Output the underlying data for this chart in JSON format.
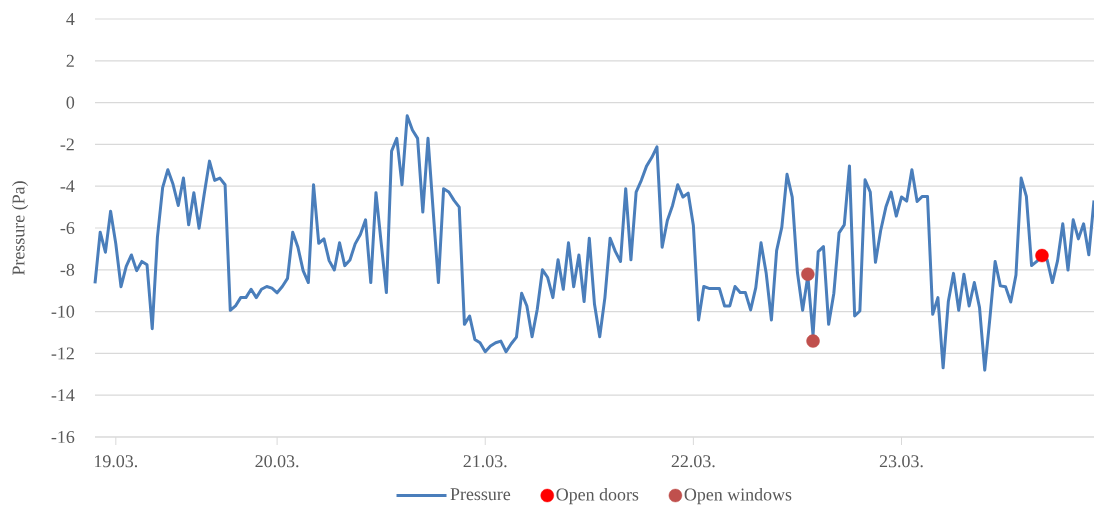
{
  "chart_data": {
    "type": "line",
    "ylabel": "Pressure (Pa)",
    "categories": [
      null,
      null,
      null,
      null,
      "19.03.",
      null,
      null,
      null,
      null,
      null,
      null,
      null,
      null,
      null,
      null,
      null,
      null,
      null,
      null,
      null,
      null,
      null,
      null,
      null,
      null,
      null,
      null,
      null,
      null,
      null,
      null,
      null,
      null,
      null,
      null,
      "20.03.",
      null,
      null,
      null,
      null,
      null,
      null,
      null,
      null,
      null,
      null,
      null,
      null,
      null,
      null,
      null,
      null,
      null,
      null,
      null,
      null,
      null,
      null,
      null,
      null,
      null,
      null,
      null,
      null,
      null,
      null,
      null,
      null,
      null,
      null,
      null,
      null,
      null,
      null,
      null,
      "21.03.",
      null,
      null,
      null,
      null,
      null,
      null,
      null,
      null,
      null,
      null,
      null,
      null,
      null,
      null,
      null,
      null,
      null,
      null,
      null,
      null,
      null,
      null,
      null,
      null,
      null,
      null,
      null,
      null,
      null,
      null,
      null,
      null,
      null,
      null,
      null,
      null,
      null,
      null,
      null,
      "22.03.",
      null,
      null,
      null,
      null,
      null,
      null,
      null,
      null,
      null,
      null,
      null,
      null,
      null,
      null,
      null,
      null,
      null,
      null,
      null,
      null,
      null,
      null,
      null,
      null,
      null,
      null,
      null,
      null,
      null,
      null,
      null,
      null,
      null,
      null,
      null,
      null,
      null,
      null,
      null,
      "23.03.",
      null,
      null,
      null,
      null,
      null,
      null,
      null,
      null,
      null,
      null,
      null,
      null,
      null,
      null,
      null,
      null,
      null,
      null,
      null,
      null,
      null,
      null,
      null,
      null,
      null,
      null,
      null,
      null,
      null,
      null,
      null,
      null,
      null,
      null,
      null,
      null,
      null
    ],
    "series": [
      {
        "name": "Pressure",
        "marker": "none",
        "color": "#4a7ebb",
        "values": [
          -8.65,
          -6.2,
          -7.16,
          -5.2,
          -6.76,
          -8.81,
          -7.84,
          -7.29,
          -8.04,
          -7.6,
          -7.76,
          -10.82,
          -6.44,
          -4.07,
          -3.21,
          -3.91,
          -4.92,
          -3.61,
          -5.85,
          -4.31,
          -6.01,
          -4.36,
          -2.8,
          -3.72,
          -3.61,
          -3.93,
          -9.94,
          -9.73,
          -9.33,
          -9.33,
          -8.93,
          -9.33,
          -8.93,
          -8.8,
          -8.88,
          -9.1,
          -8.8,
          -8.41,
          -6.2,
          -6.92,
          -8.04,
          -8.61,
          -3.93,
          -6.73,
          -6.52,
          -7.56,
          -8.01,
          -6.71,
          -7.8,
          -7.53,
          -6.76,
          -6.31,
          -5.61,
          -8.61,
          -4.31,
          -6.71,
          -9.09,
          -2.32,
          -1.71,
          -3.93,
          -0.63,
          -1.31,
          -1.71,
          -5.24,
          -1.71,
          -5.2,
          -8.61,
          -4.12,
          -4.28,
          -4.68,
          -5.0,
          -10.61,
          -10.21,
          -11.33,
          -11.49,
          -11.92,
          -11.65,
          -11.49,
          -11.41,
          -11.92,
          -11.54,
          -11.22,
          -9.12,
          -9.73,
          -11.2,
          -9.89,
          -8.0,
          -8.37,
          -9.33,
          -7.52,
          -8.93,
          -6.71,
          -8.81,
          -7.29,
          -9.52,
          -6.49,
          -9.65,
          -11.2,
          -9.33,
          -6.49,
          -7.12,
          -7.6,
          -4.12,
          -7.52,
          -4.28,
          -3.72,
          -3.04,
          -2.63,
          -2.12,
          -6.92,
          -5.64,
          -4.92,
          -3.93,
          -4.52,
          -4.33,
          -5.88,
          -10.4,
          -8.8,
          -8.89,
          -8.89,
          -8.89,
          -9.73,
          -9.73,
          -8.8,
          -9.09,
          -9.09,
          -9.92,
          -8.85,
          -6.71,
          -8.17,
          -10.4,
          -7.08,
          -5.96,
          -3.43,
          -4.52,
          -8.13,
          -9.94,
          -8.29,
          -11.14,
          -7.13,
          -6.89,
          -10.61,
          -9.12,
          -6.23,
          -5.85,
          -3.03,
          -10.21,
          -9.97,
          -3.69,
          -4.28,
          -7.64,
          -6.12,
          -5.0,
          -4.28,
          -5.43,
          -4.52,
          -4.71,
          -3.21,
          -4.73,
          -4.49,
          -4.49,
          -10.13,
          -9.33,
          -12.69,
          -9.52,
          -8.17,
          -9.94,
          -8.21,
          -9.73,
          -8.61,
          -9.81,
          -12.8,
          -10.29,
          -7.6,
          -8.77,
          -8.81,
          -9.54,
          -8.25,
          -3.61,
          -4.49,
          -7.8,
          -7.6,
          -7.32,
          -7.53,
          -8.61,
          -7.56,
          -5.8,
          -8.01,
          -5.61,
          -6.52,
          -5.8,
          -7.28,
          -4.68
        ]
      },
      {
        "name": "Open doors",
        "type": "scatter",
        "marker": "circle",
        "color": "#ff0000",
        "values": [
          null,
          null,
          null,
          null,
          null,
          null,
          null,
          null,
          null,
          null,
          null,
          null,
          null,
          null,
          null,
          null,
          null,
          null,
          null,
          null,
          null,
          null,
          null,
          null,
          null,
          null,
          null,
          null,
          null,
          null,
          null,
          null,
          null,
          null,
          null,
          null,
          null,
          null,
          null,
          null,
          null,
          null,
          null,
          null,
          null,
          null,
          null,
          null,
          null,
          null,
          null,
          null,
          null,
          null,
          null,
          null,
          null,
          null,
          null,
          null,
          null,
          null,
          null,
          null,
          null,
          null,
          null,
          null,
          null,
          null,
          null,
          null,
          null,
          null,
          null,
          null,
          null,
          null,
          null,
          null,
          null,
          null,
          null,
          null,
          null,
          null,
          null,
          null,
          null,
          null,
          null,
          null,
          null,
          null,
          null,
          null,
          null,
          null,
          null,
          null,
          null,
          null,
          null,
          null,
          null,
          null,
          null,
          null,
          null,
          null,
          null,
          null,
          null,
          null,
          null,
          null,
          null,
          null,
          null,
          null,
          null,
          null,
          null,
          null,
          null,
          null,
          null,
          null,
          null,
          null,
          null,
          null,
          null,
          null,
          null,
          null,
          null,
          null,
          null,
          null,
          null,
          null,
          null,
          null,
          null,
          null,
          null,
          null,
          null,
          null,
          null,
          null,
          null,
          null,
          null,
          null,
          null,
          null,
          null,
          null,
          null,
          null,
          null,
          null,
          null,
          null,
          null,
          null,
          null,
          null,
          null,
          null,
          null,
          null,
          null,
          null,
          null,
          null,
          null,
          null,
          null,
          null,
          -7.32,
          null,
          null,
          null,
          null,
          null,
          null,
          null,
          null,
          null,
          null
        ]
      },
      {
        "name": "Open windows",
        "type": "scatter",
        "marker": "circle",
        "color": "#c0504d",
        "values": [
          null,
          null,
          null,
          null,
          null,
          null,
          null,
          null,
          null,
          null,
          null,
          null,
          null,
          null,
          null,
          null,
          null,
          null,
          null,
          null,
          null,
          null,
          null,
          null,
          null,
          null,
          null,
          null,
          null,
          null,
          null,
          null,
          null,
          null,
          null,
          null,
          null,
          null,
          null,
          null,
          null,
          null,
          null,
          null,
          null,
          null,
          null,
          null,
          null,
          null,
          null,
          null,
          null,
          null,
          null,
          null,
          null,
          null,
          null,
          null,
          null,
          null,
          null,
          null,
          null,
          null,
          null,
          null,
          null,
          null,
          null,
          null,
          null,
          null,
          null,
          null,
          null,
          null,
          null,
          null,
          null,
          null,
          null,
          null,
          null,
          null,
          null,
          null,
          null,
          null,
          null,
          null,
          null,
          null,
          null,
          null,
          null,
          null,
          null,
          null,
          null,
          null,
          null,
          null,
          null,
          null,
          null,
          null,
          null,
          null,
          null,
          null,
          null,
          null,
          null,
          null,
          null,
          null,
          null,
          null,
          null,
          null,
          null,
          null,
          null,
          null,
          null,
          null,
          null,
          null,
          null,
          null,
          null,
          null,
          null,
          null,
          null,
          -8.21,
          -11.41,
          null,
          null,
          null,
          null,
          null,
          null,
          null,
          null,
          null,
          null,
          null,
          null,
          null,
          null,
          null,
          null,
          null,
          null,
          null,
          null,
          null,
          null,
          null,
          null,
          null,
          null,
          null,
          null,
          null,
          null,
          null,
          null,
          null,
          null,
          null,
          null,
          null,
          null,
          null,
          null,
          null,
          null,
          null,
          null,
          null,
          null,
          null,
          null,
          null,
          null,
          null,
          null,
          null,
          null
        ]
      }
    ],
    "ylim": [
      -16,
      4
    ],
    "yticks": [
      -16,
      -14,
      -12,
      -10,
      -8,
      -6,
      -4,
      -2,
      0,
      2,
      4
    ],
    "grid": "y",
    "legend": "bottom"
  }
}
